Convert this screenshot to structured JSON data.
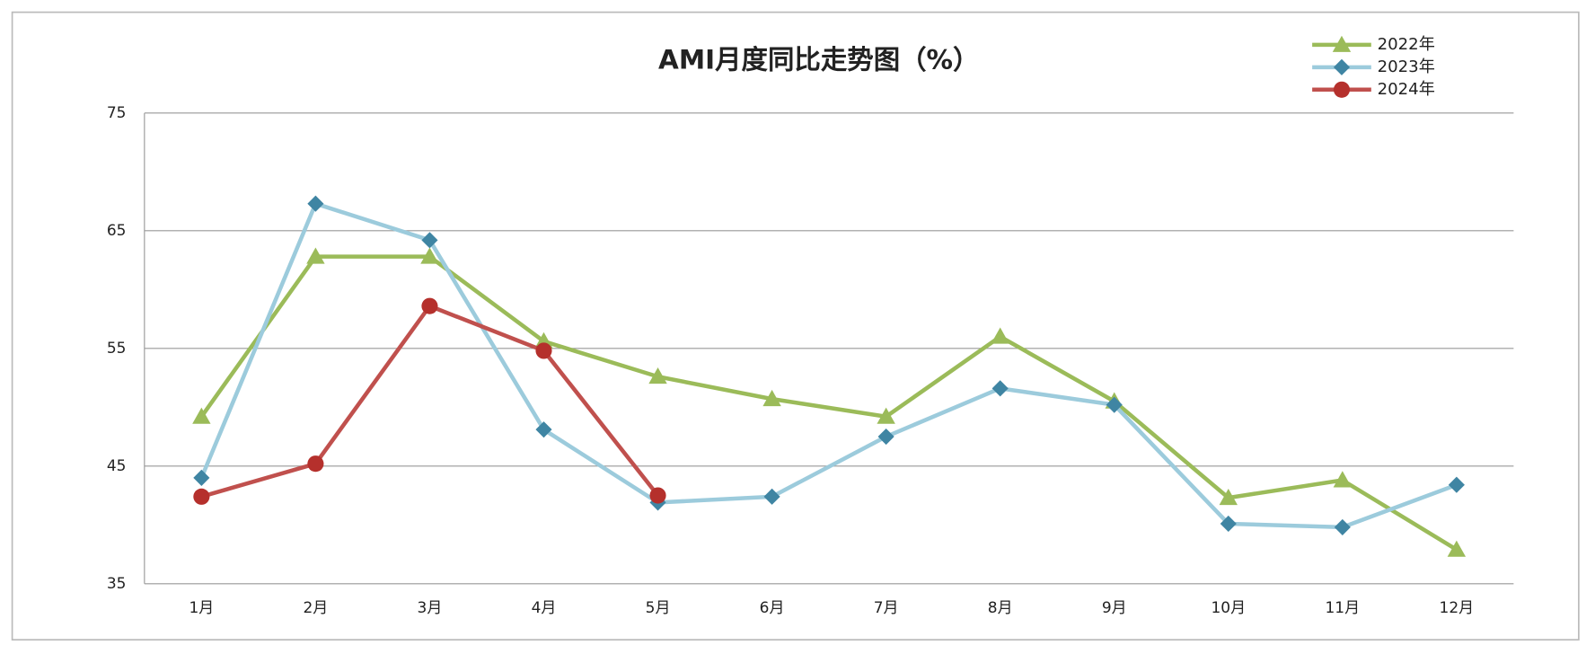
{
  "chart_data": {
    "type": "line",
    "title": "AMI月度同比走势图（%）",
    "categories": [
      "1月",
      "2月",
      "3月",
      "4月",
      "5月",
      "6月",
      "7月",
      "8月",
      "9月",
      "10月",
      "11月",
      "12月"
    ],
    "series": [
      {
        "name": "2022年",
        "color": "#9bbb59",
        "marker_color": "#9bbb59",
        "marker": "triangle",
        "values": [
          49.2,
          62.8,
          62.8,
          55.6,
          52.6,
          50.7,
          49.2,
          56.0,
          50.5,
          42.3,
          43.8,
          37.9
        ]
      },
      {
        "name": "2023年",
        "color": "#9ccbdc",
        "marker_color": "#3f85a3",
        "marker": "diamond",
        "values": [
          44.0,
          67.3,
          64.2,
          48.1,
          41.9,
          42.4,
          47.5,
          51.6,
          50.2,
          40.1,
          39.8,
          43.4
        ]
      },
      {
        "name": "2024年",
        "color": "#c0504d",
        "marker_color": "#b5302c",
        "marker": "circle",
        "values": [
          42.4,
          45.2,
          58.6,
          54.8,
          42.5,
          null,
          null,
          null,
          null,
          null,
          null,
          null
        ]
      }
    ],
    "ylim": [
      35,
      75
    ],
    "yticks": [
      35,
      45,
      55,
      65,
      75
    ],
    "grid": true,
    "legend": "top-right"
  }
}
